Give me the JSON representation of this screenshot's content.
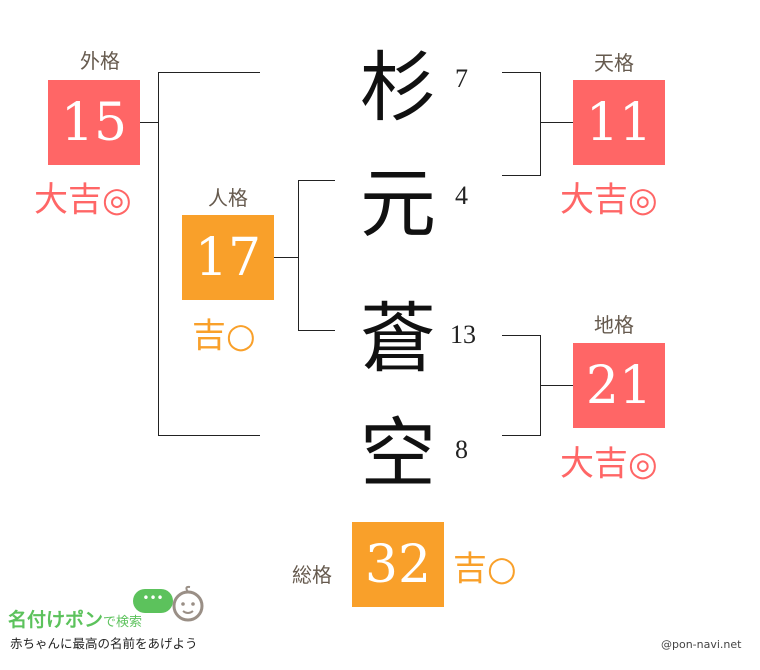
{
  "name": {
    "chars": [
      "杉",
      "元",
      "蒼",
      "空"
    ],
    "strokes": [
      "7",
      "4",
      "13",
      "8"
    ]
  },
  "gaikaku": {
    "label": "外格",
    "value": "15",
    "result": "大吉◎"
  },
  "tenkaku": {
    "label": "天格",
    "value": "11",
    "result": "大吉◎"
  },
  "jinkaku": {
    "label": "人格",
    "value": "17",
    "result": "吉○"
  },
  "chikaku": {
    "label": "地格",
    "value": "21",
    "result": "大吉◎"
  },
  "soukaku": {
    "label": "総格",
    "value": "32",
    "result": "吉○"
  },
  "logo": {
    "title": "名付けポン",
    "suffix": "で検索",
    "tagline": "赤ちゃんに最高の名前をあげよう"
  },
  "credit": "@pon-navi.net",
  "colors": {
    "daikichi": "#ff6666",
    "kichi": "#f9a02a",
    "label": "#665a4e",
    "logo_green": "#5cc25c"
  }
}
